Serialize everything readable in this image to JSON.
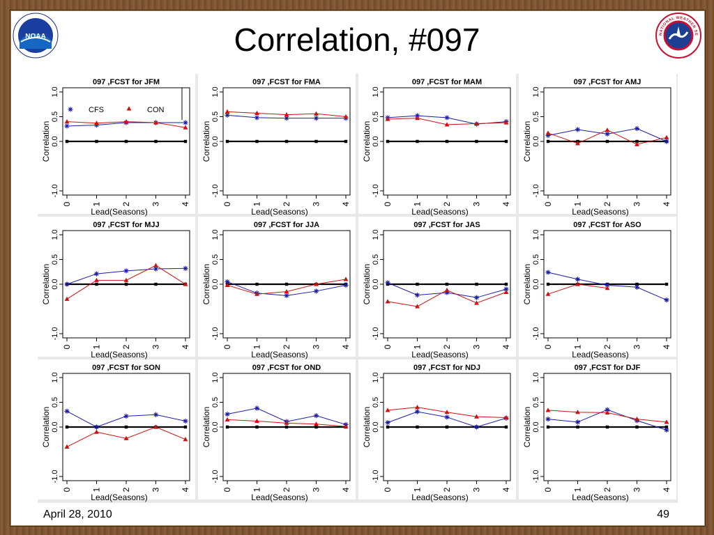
{
  "slide": {
    "title": "Correlation, #097",
    "date": "April 28, 2010",
    "page_number": "49",
    "noaa_logo_text": "NOAA",
    "nws_logo_text": "NATIONAL WEATHER SERVICE"
  },
  "legend": {
    "series": [
      "CFS",
      "CON"
    ]
  },
  "colors": {
    "CFS": "#1a1aa8",
    "CON": "#cc1111",
    "zero_line": "#000000"
  },
  "chart_data": [
    {
      "type": "line",
      "title": "097 ,FCST for JFM",
      "xlabel": "Lead(Seasons)",
      "ylabel": "Correlation",
      "x": [
        0,
        1,
        2,
        3,
        4
      ],
      "ylim": [
        -1.0,
        1.0
      ],
      "yticks": [
        "-1.0",
        "0.0",
        "0.5",
        "1.0"
      ],
      "series": [
        {
          "name": "CFS",
          "values": [
            0.31,
            0.33,
            0.38,
            0.38,
            0.38
          ]
        },
        {
          "name": "CON",
          "values": [
            0.4,
            0.37,
            0.4,
            0.38,
            0.28
          ]
        }
      ],
      "legend": true
    },
    {
      "type": "line",
      "title": "097 ,FCST for FMA",
      "xlabel": "Lead(Seasons)",
      "ylabel": "Correlation",
      "x": [
        0,
        1,
        2,
        3,
        4
      ],
      "ylim": [
        -1.0,
        1.0
      ],
      "yticks": [
        "-1.0",
        "0.0",
        "0.5",
        "1.0"
      ],
      "series": [
        {
          "name": "CFS",
          "values": [
            0.53,
            0.48,
            0.47,
            0.47,
            0.47
          ]
        },
        {
          "name": "CON",
          "values": [
            0.6,
            0.57,
            0.54,
            0.56,
            0.5
          ]
        }
      ]
    },
    {
      "type": "line",
      "title": "097 ,FCST for MAM",
      "xlabel": "Lead(Seasons)",
      "ylabel": "Correlation",
      "x": [
        0,
        1,
        2,
        3,
        4
      ],
      "ylim": [
        -1.0,
        1.0
      ],
      "yticks": [
        "-1.0",
        "0.0",
        "0.5",
        "1.0"
      ],
      "series": [
        {
          "name": "CFS",
          "values": [
            0.48,
            0.52,
            0.48,
            0.35,
            0.4
          ]
        },
        {
          "name": "CON",
          "values": [
            0.45,
            0.47,
            0.34,
            0.36,
            0.38
          ]
        }
      ]
    },
    {
      "type": "line",
      "title": "097 ,FCST for AMJ",
      "xlabel": "Lead(Seasons)",
      "ylabel": "Correlation",
      "x": [
        0,
        1,
        2,
        3,
        4
      ],
      "ylim": [
        -1.0,
        1.0
      ],
      "yticks": [
        "-1.0",
        "0.0",
        "0.5",
        "1.0"
      ],
      "series": [
        {
          "name": "CFS",
          "values": [
            0.12,
            0.24,
            0.15,
            0.26,
            0.0
          ]
        },
        {
          "name": "CON",
          "values": [
            0.17,
            -0.04,
            0.23,
            -0.06,
            0.08
          ]
        }
      ]
    },
    {
      "type": "line",
      "title": "097 ,FCST for MJJ",
      "xlabel": "Lead(Seasons)",
      "ylabel": "Correlation",
      "x": [
        0,
        1,
        2,
        3,
        4
      ],
      "ylim": [
        -1.0,
        1.0
      ],
      "yticks": [
        "-1.0",
        "0.0",
        "0.5",
        "1.0"
      ],
      "series": [
        {
          "name": "CFS",
          "values": [
            0.0,
            0.21,
            0.27,
            0.31,
            0.32
          ]
        },
        {
          "name": "CON",
          "values": [
            -0.3,
            0.08,
            0.08,
            0.38,
            0.0
          ]
        }
      ]
    },
    {
      "type": "line",
      "title": "097 ,FCST for JJA",
      "xlabel": "Lead(Seasons)",
      "ylabel": "Correlation",
      "x": [
        0,
        1,
        2,
        3,
        4
      ],
      "ylim": [
        -1.0,
        1.0
      ],
      "yticks": [
        "-1.0",
        "0.0",
        "0.5",
        "1.0"
      ],
      "series": [
        {
          "name": "CFS",
          "values": [
            0.05,
            -0.18,
            -0.23,
            -0.14,
            -0.02
          ]
        },
        {
          "name": "CON",
          "values": [
            -0.02,
            -0.2,
            -0.15,
            0.0,
            0.1
          ]
        }
      ]
    },
    {
      "type": "line",
      "title": "097 ,FCST for JAS",
      "xlabel": "Lead(Seasons)",
      "ylabel": "Correlation",
      "x": [
        0,
        1,
        2,
        3,
        4
      ],
      "ylim": [
        -1.0,
        1.0
      ],
      "yticks": [
        "-1.0",
        "0.0",
        "0.5",
        "1.0"
      ],
      "series": [
        {
          "name": "CFS",
          "values": [
            0.03,
            -0.22,
            -0.17,
            -0.27,
            -0.1
          ]
        },
        {
          "name": "CON",
          "values": [
            -0.35,
            -0.45,
            -0.12,
            -0.38,
            -0.16
          ]
        }
      ]
    },
    {
      "type": "line",
      "title": "097 ,FCST for ASO",
      "xlabel": "Lead(Seasons)",
      "ylabel": "Correlation",
      "x": [
        0,
        1,
        2,
        3,
        4
      ],
      "ylim": [
        -1.0,
        1.0
      ],
      "yticks": [
        "-1.0",
        "0.0",
        "0.5",
        "1.0"
      ],
      "series": [
        {
          "name": "CFS",
          "values": [
            0.24,
            0.1,
            -0.02,
            -0.06,
            -0.32
          ]
        },
        {
          "name": "CON",
          "values": [
            -0.2,
            0.0,
            -0.08,
            null,
            null
          ]
        }
      ]
    },
    {
      "type": "line",
      "title": "097 ,FCST for SON",
      "xlabel": "Lead(Seasons)",
      "ylabel": "Correlation",
      "x": [
        0,
        1,
        2,
        3,
        4
      ],
      "ylim": [
        -1.0,
        1.0
      ],
      "yticks": [
        "-1.0",
        "0.0",
        "0.5",
        "1.0"
      ],
      "series": [
        {
          "name": "CFS",
          "values": [
            0.32,
            0.0,
            0.22,
            0.25,
            0.12
          ]
        },
        {
          "name": "CON",
          "values": [
            -0.4,
            -0.1,
            -0.23,
            0.0,
            -0.25
          ]
        }
      ]
    },
    {
      "type": "line",
      "title": "097 ,FCST for OND",
      "xlabel": "Lead(Seasons)",
      "ylabel": "Correlation",
      "x": [
        0,
        1,
        2,
        3,
        4
      ],
      "ylim": [
        -1.0,
        1.0
      ],
      "yticks": [
        "-1.0",
        "0.0",
        "0.5",
        "1.0"
      ],
      "series": [
        {
          "name": "CFS",
          "values": [
            0.26,
            0.38,
            0.11,
            0.23,
            0.05
          ]
        },
        {
          "name": "CON",
          "values": [
            0.15,
            0.12,
            0.08,
            0.06,
            0.01
          ]
        }
      ]
    },
    {
      "type": "line",
      "title": "097 ,FCST for NDJ",
      "xlabel": "Lead(Seasons)",
      "ylabel": "Correlation",
      "x": [
        0,
        1,
        2,
        3,
        4
      ],
      "ylim": [
        -1.0,
        1.0
      ],
      "yticks": [
        "-1.0",
        "0.0",
        "0.5",
        "1.0"
      ],
      "series": [
        {
          "name": "CFS",
          "values": [
            0.09,
            0.31,
            0.2,
            0.0,
            0.18
          ]
        },
        {
          "name": "CON",
          "values": [
            0.34,
            0.4,
            0.3,
            0.21,
            0.19
          ]
        }
      ]
    },
    {
      "type": "line",
      "title": "097 ,FCST for DJF",
      "xlabel": "Lead(Seasons)",
      "ylabel": "Correlation",
      "x": [
        0,
        1,
        2,
        3,
        4
      ],
      "ylim": [
        -1.0,
        1.0
      ],
      "yticks": [
        "-1.0",
        "0.0",
        "0.5",
        "1.0"
      ],
      "series": [
        {
          "name": "CFS",
          "values": [
            0.16,
            0.1,
            0.35,
            0.13,
            -0.06
          ]
        },
        {
          "name": "CON",
          "values": [
            0.34,
            0.3,
            0.29,
            0.16,
            0.1
          ]
        }
      ]
    }
  ]
}
